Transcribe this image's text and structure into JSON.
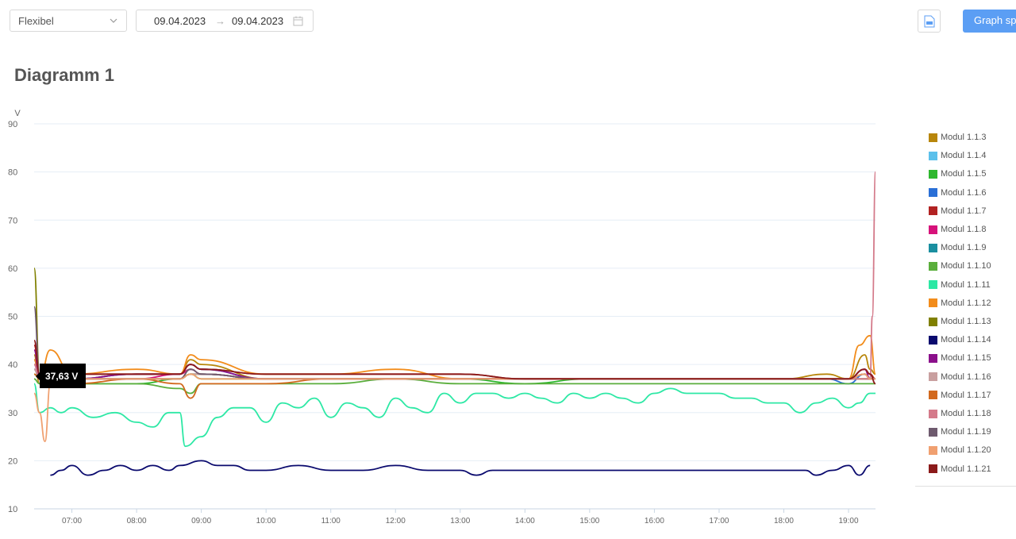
{
  "toolbar": {
    "mode_select": "Flexibel",
    "date_from": "09.04.2023",
    "date_to": "09.04.2023",
    "arrow": "→",
    "export_icon": "document-icon",
    "graph_button": "Graph sp"
  },
  "tooltip": {
    "text": "37,63 V"
  },
  "colors": {
    "grid": "#e6eef6",
    "button": "#5b9ef4"
  },
  "chart_data": {
    "type": "line",
    "title": "Diagramm 1",
    "ylabel": "V",
    "xlabel": "",
    "ylim": [
      10,
      90
    ],
    "yticks": [
      10,
      20,
      30,
      40,
      50,
      60,
      70,
      80,
      90
    ],
    "xlim": [
      "06:25",
      "19:25"
    ],
    "xticks": [
      "07:00",
      "08:00",
      "09:00",
      "10:00",
      "11:00",
      "12:00",
      "13:00",
      "14:00",
      "15:00",
      "16:00",
      "17:00",
      "18:00",
      "19:00"
    ],
    "grid": "horizontal",
    "legend_position": "right",
    "series": [
      {
        "name": "Modul 1.1.3",
        "color": "#b8860b",
        "x": [
          "06:25",
          "06:30",
          "06:40",
          "07:00",
          "08:00",
          "08:40",
          "08:50",
          "09:00",
          "10:00",
          "11:00",
          "12:00",
          "13:00",
          "14:00",
          "15:00",
          "16:00",
          "17:00",
          "18:00",
          "18:40",
          "19:00",
          "19:15",
          "19:20",
          "19:25"
        ],
        "values": [
          42,
          36,
          38,
          37,
          38,
          38,
          41,
          40,
          37,
          37,
          37,
          37,
          37,
          37,
          37,
          37,
          37,
          38,
          37,
          42,
          39,
          38
        ]
      },
      {
        "name": "Modul 1.1.4",
        "color": "#5bc0eb",
        "x": [
          "06:25",
          "06:30",
          "06:40",
          "07:00",
          "08:00",
          "08:40",
          "08:50",
          "09:00",
          "10:00",
          "11:00",
          "12:00",
          "13:00",
          "14:00",
          "15:00",
          "16:00",
          "17:00",
          "18:00",
          "18:40",
          "19:00",
          "19:15",
          "19:20",
          "19:25"
        ],
        "values": [
          40,
          37,
          37,
          37,
          37,
          37,
          39,
          38,
          37,
          37,
          37,
          37,
          37,
          37,
          37,
          37,
          37,
          37,
          37,
          38,
          37,
          37
        ]
      },
      {
        "name": "Modul 1.1.5",
        "color": "#2eb82e",
        "x": [
          "06:25",
          "06:30",
          "06:40",
          "07:00",
          "08:00",
          "08:40",
          "08:50",
          "09:00",
          "10:00",
          "11:00",
          "12:00",
          "13:00",
          "14:00",
          "15:00",
          "16:00",
          "17:00",
          "18:00",
          "18:40",
          "19:00",
          "19:15",
          "19:20",
          "19:25"
        ],
        "values": [
          38,
          37,
          37,
          36,
          36,
          37,
          38,
          37,
          37,
          37,
          37,
          37,
          36,
          37,
          37,
          37,
          37,
          37,
          37,
          37,
          37,
          37
        ]
      },
      {
        "name": "Modul 1.1.6",
        "color": "#2a6fd6",
        "x": [
          "06:25",
          "06:30",
          "06:40",
          "07:00",
          "08:00",
          "08:40",
          "08:50",
          "09:00",
          "10:00",
          "11:00",
          "12:00",
          "13:00",
          "14:00",
          "15:00",
          "16:00",
          "17:00",
          "18:00",
          "18:40",
          "19:00",
          "19:15",
          "19:20",
          "19:25"
        ],
        "values": [
          41,
          37,
          37,
          37,
          38,
          38,
          40,
          39,
          37,
          37,
          37,
          37,
          37,
          37,
          37,
          37,
          37,
          37,
          36,
          38,
          37,
          37
        ]
      },
      {
        "name": "Modul 1.1.7",
        "color": "#b22222",
        "x": [
          "06:25",
          "06:30",
          "06:40",
          "07:00",
          "08:00",
          "08:40",
          "08:50",
          "09:00",
          "10:00",
          "11:00",
          "12:00",
          "13:00",
          "14:00",
          "15:00",
          "16:00",
          "17:00",
          "18:00",
          "18:40",
          "19:00",
          "19:15",
          "19:20",
          "19:25"
        ],
        "values": [
          44,
          38,
          38,
          38,
          38,
          38,
          40,
          39,
          38,
          38,
          38,
          38,
          37,
          37,
          37,
          37,
          37,
          37,
          37,
          39,
          38,
          37
        ]
      },
      {
        "name": "Modul 1.1.8",
        "color": "#d6127a",
        "x": [
          "06:25",
          "06:30",
          "06:40",
          "07:00",
          "08:00",
          "08:40",
          "08:50",
          "09:00",
          "10:00",
          "11:00",
          "12:00",
          "13:00",
          "14:00",
          "15:00",
          "16:00",
          "17:00",
          "18:00",
          "18:40",
          "19:00",
          "19:15",
          "19:20",
          "19:25"
        ],
        "values": [
          40,
          37,
          37,
          37,
          37,
          38,
          39,
          38,
          37,
          37,
          37,
          37,
          37,
          37,
          37,
          37,
          37,
          37,
          37,
          38,
          37,
          37
        ]
      },
      {
        "name": "Modul 1.1.9",
        "color": "#1a8fa0",
        "x": [
          "06:25",
          "06:30",
          "06:40",
          "07:00",
          "08:00",
          "08:40",
          "08:50",
          "09:00",
          "10:00",
          "11:00",
          "12:00",
          "13:00",
          "14:00",
          "15:00",
          "16:00",
          "17:00",
          "18:00",
          "18:40",
          "19:00",
          "19:15",
          "19:20",
          "19:25"
        ],
        "values": [
          39,
          37,
          37,
          37,
          37,
          37,
          38,
          38,
          37,
          37,
          37,
          37,
          37,
          37,
          37,
          37,
          37,
          37,
          37,
          37,
          37,
          37
        ]
      },
      {
        "name": "Modul 1.1.10",
        "color": "#5aae3c",
        "x": [
          "06:25",
          "06:30",
          "06:40",
          "07:00",
          "08:00",
          "08:40",
          "08:50",
          "09:00",
          "10:00",
          "11:00",
          "12:00",
          "13:00",
          "14:00",
          "15:00",
          "16:00",
          "17:00",
          "18:00",
          "18:40",
          "19:00",
          "19:15",
          "19:20",
          "19:25"
        ],
        "values": [
          37,
          36,
          36,
          36,
          36,
          35,
          34,
          36,
          36,
          36,
          37,
          36,
          36,
          36,
          36,
          36,
          36,
          36,
          36,
          36,
          36,
          36
        ]
      },
      {
        "name": "Modul 1.1.11",
        "color": "#2de8a5",
        "x": [
          "06:25",
          "06:30",
          "06:40",
          "06:50",
          "07:00",
          "07:20",
          "07:40",
          "08:00",
          "08:15",
          "08:30",
          "08:40",
          "08:45",
          "09:00",
          "09:15",
          "09:30",
          "09:45",
          "10:00",
          "10:15",
          "10:30",
          "10:45",
          "11:00",
          "11:15",
          "11:30",
          "11:45",
          "12:00",
          "12:15",
          "12:30",
          "12:45",
          "13:00",
          "13:15",
          "13:30",
          "13:45",
          "14:00",
          "14:15",
          "14:30",
          "14:45",
          "15:00",
          "15:15",
          "15:30",
          "15:45",
          "16:00",
          "16:15",
          "16:30",
          "16:45",
          "17:00",
          "17:15",
          "17:30",
          "17:45",
          "18:00",
          "18:15",
          "18:30",
          "18:45",
          "19:00",
          "19:10",
          "19:20",
          "19:25"
        ],
        "values": [
          36,
          30,
          31,
          30,
          31,
          29,
          30,
          28,
          27,
          30,
          30,
          23,
          25,
          29,
          31,
          31,
          28,
          32,
          31,
          33,
          29,
          32,
          31,
          29,
          33,
          31,
          30,
          34,
          32,
          34,
          34,
          33,
          34,
          33,
          32,
          34,
          33,
          34,
          33,
          32,
          34,
          35,
          34,
          34,
          34,
          33,
          33,
          32,
          32,
          30,
          32,
          33,
          31,
          32,
          34,
          34
        ]
      },
      {
        "name": "Modul 1.1.12",
        "color": "#f28c1b",
        "x": [
          "06:25",
          "06:30",
          "06:40",
          "07:00",
          "08:00",
          "08:40",
          "08:50",
          "09:00",
          "10:00",
          "11:00",
          "12:00",
          "13:00",
          "14:00",
          "15:00",
          "16:00",
          "17:00",
          "18:00",
          "18:40",
          "19:00",
          "19:10",
          "19:20",
          "19:25"
        ],
        "values": [
          41,
          37,
          43,
          38,
          39,
          38,
          42,
          41,
          38,
          38,
          39,
          37,
          37,
          37,
          37,
          37,
          37,
          37,
          37,
          44,
          46,
          38
        ]
      },
      {
        "name": "Modul 1.1.13",
        "color": "#808000",
        "x": [
          "06:25",
          "06:30",
          "06:40",
          "07:00",
          "08:00",
          "08:40",
          "08:50",
          "09:00",
          "10:00",
          "11:00",
          "12:00",
          "13:00",
          "14:00",
          "15:00",
          "16:00",
          "17:00",
          "18:00",
          "18:40",
          "19:00",
          "19:15",
          "19:20",
          "19:25"
        ],
        "values": [
          60,
          38,
          37,
          37,
          37,
          37,
          38,
          38,
          37,
          37,
          37,
          37,
          37,
          37,
          37,
          37,
          37,
          37,
          37,
          38,
          37,
          37
        ]
      },
      {
        "name": "Modul 1.1.14",
        "color": "#0a0a6e",
        "x": [
          "06:40",
          "06:50",
          "07:00",
          "07:15",
          "07:30",
          "07:45",
          "08:00",
          "08:15",
          "08:30",
          "08:40",
          "09:00",
          "09:15",
          "09:30",
          "09:45",
          "10:00",
          "10:30",
          "11:00",
          "11:30",
          "12:00",
          "12:30",
          "13:00",
          "13:15",
          "13:30",
          "14:00",
          "14:30",
          "15:00",
          "15:30",
          "16:00",
          "16:30",
          "17:00",
          "17:30",
          "18:00",
          "18:20",
          "18:30",
          "18:45",
          "19:00",
          "19:10",
          "19:20"
        ],
        "values": [
          17,
          18,
          19,
          17,
          18,
          19,
          18,
          19,
          18,
          19,
          20,
          19,
          19,
          18,
          18,
          19,
          18,
          18,
          19,
          18,
          18,
          17,
          18,
          18,
          18,
          18,
          18,
          18,
          18,
          18,
          18,
          18,
          18,
          17,
          18,
          19,
          17,
          19
        ]
      },
      {
        "name": "Modul 1.1.15",
        "color": "#8b108b",
        "x": [
          "06:25",
          "06:30",
          "06:40",
          "07:00",
          "08:00",
          "08:40",
          "08:50",
          "09:00",
          "10:00",
          "11:00",
          "12:00",
          "13:00",
          "14:00",
          "15:00",
          "16:00",
          "17:00",
          "18:00",
          "18:40",
          "19:00",
          "19:15",
          "19:20",
          "19:25"
        ],
        "values": [
          43,
          37,
          37,
          37,
          38,
          38,
          40,
          39,
          37,
          37,
          37,
          37,
          37,
          37,
          37,
          37,
          37,
          37,
          37,
          39,
          37,
          37
        ]
      },
      {
        "name": "Modul 1.1.16",
        "color": "#c9a0a0",
        "x": [
          "06:25",
          "06:30",
          "06:40",
          "07:00",
          "08:00",
          "08:40",
          "08:50",
          "09:00",
          "10:00",
          "11:00",
          "12:00",
          "13:00",
          "14:00",
          "15:00",
          "16:00",
          "17:00",
          "18:00",
          "18:40",
          "19:00",
          "19:15",
          "19:20",
          "19:25"
        ],
        "values": [
          39,
          37,
          37,
          37,
          37,
          37,
          38,
          38,
          37,
          37,
          37,
          37,
          37,
          37,
          37,
          37,
          37,
          37,
          37,
          37,
          37,
          37
        ]
      },
      {
        "name": "Modul 1.1.17",
        "color": "#d2691e",
        "x": [
          "06:25",
          "06:30",
          "06:40",
          "07:00",
          "08:00",
          "08:40",
          "08:50",
          "09:00",
          "10:00",
          "11:00",
          "12:00",
          "13:00",
          "14:00",
          "15:00",
          "16:00",
          "17:00",
          "18:00",
          "18:40",
          "19:00",
          "19:15",
          "19:20",
          "19:25"
        ],
        "values": [
          38,
          37,
          37,
          36,
          37,
          36,
          33,
          36,
          36,
          37,
          37,
          37,
          37,
          37,
          37,
          37,
          37,
          37,
          37,
          37,
          37,
          37
        ]
      },
      {
        "name": "Modul 1.1.18",
        "color": "#d47a8a",
        "x": [
          "06:25",
          "06:30",
          "06:40",
          "07:00",
          "08:00",
          "08:40",
          "08:50",
          "09:00",
          "10:00",
          "11:00",
          "12:00",
          "13:00",
          "14:00",
          "15:00",
          "16:00",
          "17:00",
          "18:00",
          "18:40",
          "19:00",
          "19:15",
          "19:20",
          "19:22",
          "19:25"
        ],
        "values": [
          40,
          37,
          37,
          37,
          37,
          37,
          39,
          38,
          37,
          37,
          37,
          37,
          37,
          37,
          37,
          37,
          37,
          37,
          37,
          37,
          37,
          50,
          80
        ]
      },
      {
        "name": "Modul 1.1.19",
        "color": "#6e5a6e",
        "x": [
          "06:25",
          "06:30",
          "06:40",
          "07:00",
          "08:00",
          "08:40",
          "08:50",
          "09:00",
          "10:00",
          "11:00",
          "12:00",
          "13:00",
          "14:00",
          "15:00",
          "16:00",
          "17:00",
          "18:00",
          "18:40",
          "19:00",
          "19:15",
          "19:20",
          "19:25"
        ],
        "values": [
          52,
          38,
          37,
          37,
          37,
          37,
          39,
          38,
          37,
          37,
          37,
          37,
          37,
          37,
          37,
          37,
          37,
          37,
          37,
          38,
          37,
          37
        ]
      },
      {
        "name": "Modul 1.1.20",
        "color": "#f0a070",
        "x": [
          "06:25",
          "06:30",
          "06:35",
          "06:40",
          "07:00",
          "08:00",
          "08:40",
          "08:50",
          "09:00",
          "10:00",
          "11:00",
          "12:00",
          "13:00",
          "14:00",
          "15:00",
          "16:00",
          "17:00",
          "18:00",
          "18:40",
          "19:00",
          "19:15",
          "19:20",
          "19:25"
        ],
        "values": [
          34,
          30,
          24,
          36,
          37,
          37,
          37,
          38,
          37,
          37,
          37,
          37,
          37,
          37,
          37,
          37,
          37,
          37,
          37,
          37,
          38,
          37,
          37
        ]
      },
      {
        "name": "Modul 1.1.21",
        "color": "#8b1a1a",
        "x": [
          "06:25",
          "06:30",
          "06:40",
          "07:00",
          "08:00",
          "08:40",
          "08:50",
          "09:00",
          "10:00",
          "11:00",
          "12:00",
          "13:00",
          "14:00",
          "15:00",
          "16:00",
          "17:00",
          "18:00",
          "18:40",
          "19:00",
          "19:15",
          "19:20",
          "19:25"
        ],
        "values": [
          45,
          38,
          38,
          38,
          38,
          38,
          40,
          39,
          38,
          38,
          38,
          38,
          37,
          37,
          37,
          37,
          37,
          37,
          37,
          39,
          38,
          36
        ]
      }
    ]
  }
}
